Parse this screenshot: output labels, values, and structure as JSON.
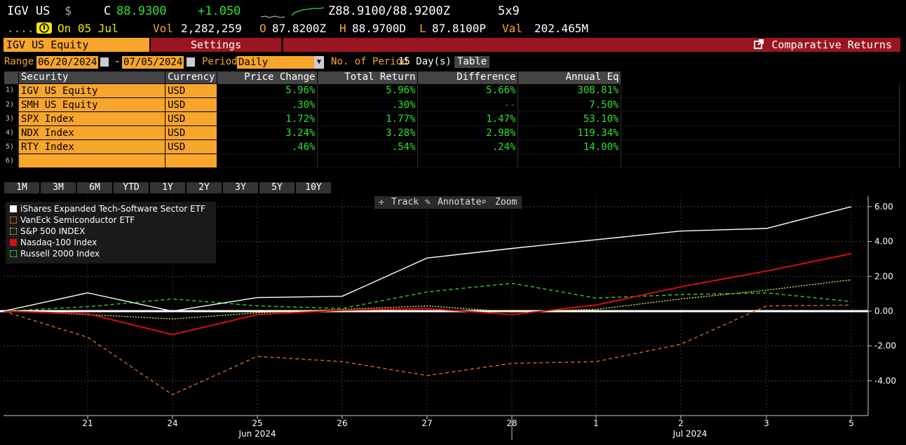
{
  "header": {
    "ticker": "IGV US",
    "currency_symbol": "$",
    "last_label": "C",
    "last": "88.9300",
    "change": "+1.050",
    "bid_ask": "Z88.9100/88.9200Z",
    "size": "5x9",
    "dots": ".....",
    "on_label": "On 05 Jul",
    "vol_label": "Vol",
    "vol": "2,282,259",
    "open_label": "O",
    "open": "87.8200Z",
    "high_label": "H",
    "high": "88.9700D",
    "low_label": "L",
    "low": "87.8100P",
    "val_label": "Val",
    "val": "202.465M"
  },
  "tabs": {
    "security": "IGV US Equity",
    "settings": "Settings",
    "function": "Comparative Returns"
  },
  "controls": {
    "range_label": "Range",
    "start": "06/20/2024",
    "end": "07/05/2024",
    "dash": "-",
    "period_label": "Period",
    "period": "Daily",
    "nop_label": "No. of Period",
    "nop_value": "15 Day(s)",
    "table_btn": "Table"
  },
  "table": {
    "headers": [
      "Security",
      "Currency",
      "Price Change",
      "Total Return",
      "Difference",
      "Annual Eq"
    ],
    "rows": [
      {
        "n": "1)",
        "sec": "IGV US Equity",
        "cur": "USD",
        "pc": "5.96%",
        "tr": "5.96%",
        "diff": "5.66%",
        "ae": "308.81%"
      },
      {
        "n": "2)",
        "sec": "SMH US Equity",
        "cur": "USD",
        "pc": ".30%",
        "tr": ".30%",
        "diff": "--",
        "ae": "7.50%"
      },
      {
        "n": "3)",
        "sec": "SPX Index",
        "cur": "USD",
        "pc": "1.72%",
        "tr": "1.77%",
        "diff": "1.47%",
        "ae": "53.10%"
      },
      {
        "n": "4)",
        "sec": "NDX Index",
        "cur": "USD",
        "pc": "3.24%",
        "tr": "3.28%",
        "diff": "2.98%",
        "ae": "119.34%"
      },
      {
        "n": "5)",
        "sec": "RTY Index",
        "cur": "USD",
        "pc": ".46%",
        "tr": ".54%",
        "diff": ".24%",
        "ae": "14.00%"
      },
      {
        "n": "6)",
        "sec": "",
        "cur": "",
        "pc": "",
        "tr": "",
        "diff": "",
        "ae": ""
      }
    ]
  },
  "periods": [
    "1M",
    "3M",
    "6M",
    "YTD",
    "1Y",
    "2Y",
    "3Y",
    "5Y",
    "10Y"
  ],
  "tools": {
    "track": "Track",
    "annotate": "Annotate",
    "zoom": "Zoom"
  },
  "colors": {
    "igv": "#ffffff",
    "smh": "#d2691e",
    "spx": "#e8e85a",
    "ndx": "#d01010",
    "rty": "#2fd02f",
    "accent": "#f7a52b",
    "bar": "#9a1520"
  },
  "chart_data": {
    "type": "line",
    "title": "Comparative Returns",
    "x": [
      "20",
      "21",
      "24",
      "25",
      "26",
      "27",
      "28",
      "1",
      "2",
      "3",
      "5"
    ],
    "x_tick_labels": [
      "21",
      "24",
      "25",
      "26",
      "27",
      "28",
      "1",
      "2",
      "3",
      "5"
    ],
    "month_labels": [
      "Jun 2024",
      "Jul 2024"
    ],
    "ylim": [
      -6,
      6.6
    ],
    "yticks": [
      "6.00",
      "4.00",
      "2.00",
      "0.00",
      "-2.00",
      "-4.00"
    ],
    "ytick_values": [
      6,
      4,
      2,
      0,
      -2,
      -4
    ],
    "series": [
      {
        "name": "iShares Expanded Tech-Software Sector ETF",
        "key": "igv",
        "style": "solid",
        "values": [
          0,
          1.05,
          0,
          0.78,
          0.85,
          3.05,
          3.6,
          4.1,
          4.6,
          4.75,
          6.0
        ]
      },
      {
        "name": "VanEck Semiconductor ETF",
        "key": "smh",
        "style": "dashed",
        "values": [
          0,
          -1.5,
          -4.8,
          -2.6,
          -2.9,
          -3.7,
          -3.0,
          -2.9,
          -1.9,
          0.3,
          0.35
        ]
      },
      {
        "name": "S&P 500 INDEX",
        "key": "spx",
        "style": "dotted",
        "values": [
          0,
          -0.2,
          -0.45,
          -0.1,
          0.1,
          0.3,
          -0.05,
          0.1,
          0.7,
          1.2,
          1.8
        ]
      },
      {
        "name": "Nasdaq-100 Index",
        "key": "ndx",
        "style": "solid",
        "values": [
          0,
          -0.15,
          -1.35,
          -0.2,
          0.05,
          0.15,
          -0.2,
          0.35,
          1.4,
          2.3,
          3.3
        ]
      },
      {
        "name": "Russell 2000 Index",
        "key": "rty",
        "style": "dashed",
        "values": [
          0,
          0.25,
          0.7,
          0.3,
          0.15,
          1.1,
          1.6,
          0.75,
          0.95,
          1.05,
          0.55
        ]
      }
    ]
  }
}
